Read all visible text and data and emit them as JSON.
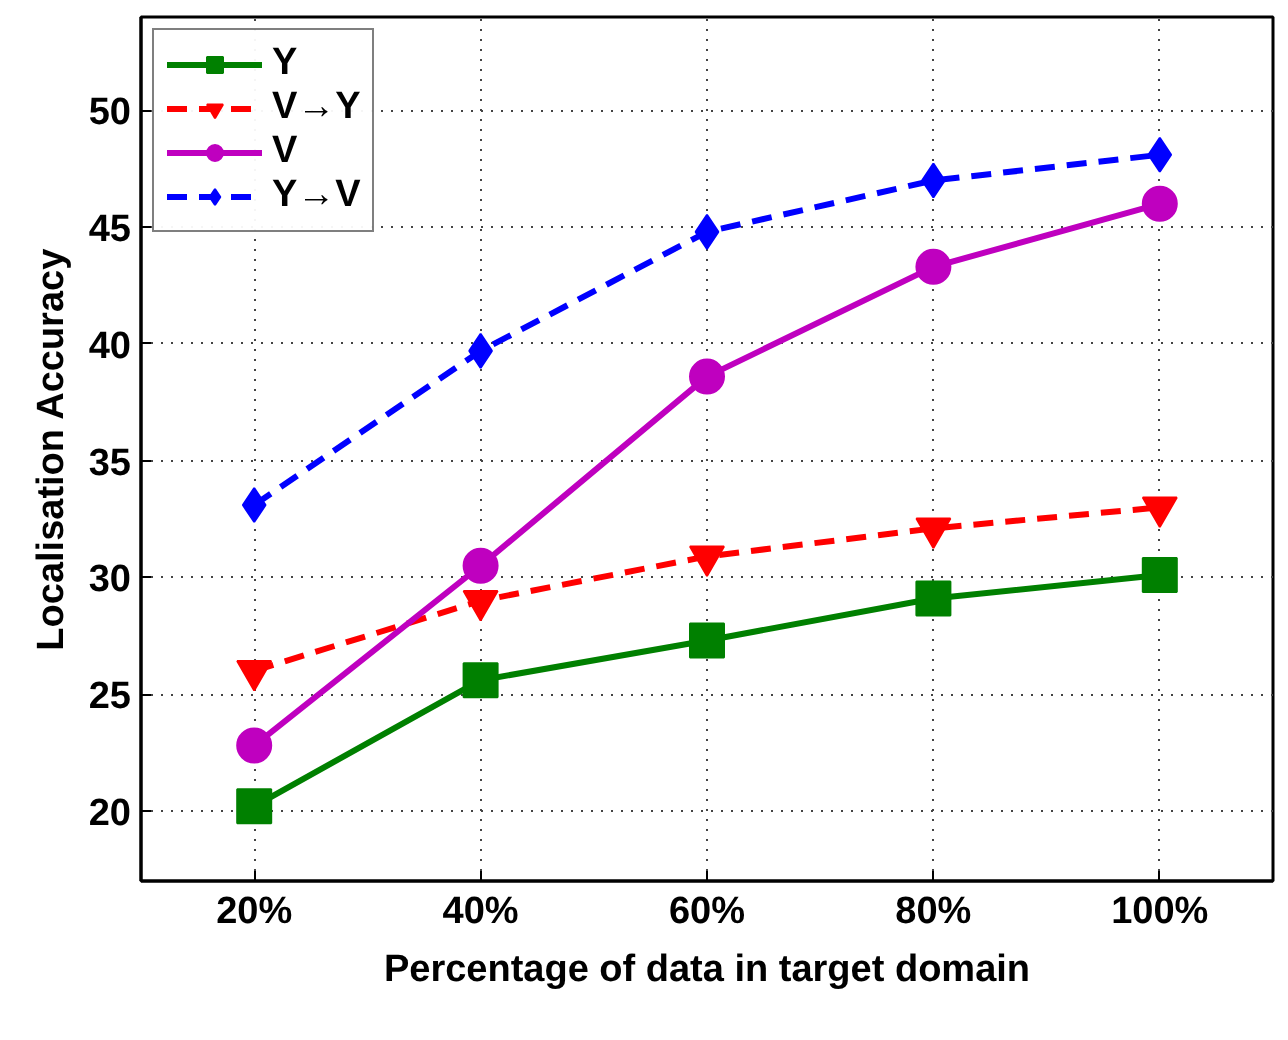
{
  "chart_data": {
    "type": "line",
    "xlabel": "Percentage of data in target domain",
    "ylabel": "Localisation Accuracy",
    "x": [
      20,
      40,
      60,
      80,
      100
    ],
    "xlim": [
      10,
      110
    ],
    "ylim": [
      17,
      54
    ],
    "xticks": [
      {
        "value": 20,
        "label": "20%"
      },
      {
        "value": 40,
        "label": "40%"
      },
      {
        "value": 60,
        "label": "60%"
      },
      {
        "value": 80,
        "label": "80%"
      },
      {
        "value": 100,
        "label": "100%"
      }
    ],
    "yticks": [
      20,
      25,
      30,
      35,
      40,
      45,
      50
    ],
    "grid": true,
    "legend": "top left",
    "series": [
      {
        "name": "Y",
        "color": "#008000",
        "marker": "square",
        "line_style": "solid",
        "values": [
          20.2,
          25.6,
          27.3,
          29.1,
          30.1
        ]
      },
      {
        "name": "V→Y",
        "color": "#ff0000",
        "marker": "triangle",
        "line_style": "dashed",
        "values": [
          26.0,
          29.0,
          30.9,
          32.1,
          33.0
        ]
      },
      {
        "name": "V",
        "color": "#bf00bf",
        "marker": "circle",
        "line_style": "solid",
        "values": [
          22.8,
          30.5,
          38.6,
          43.3,
          46.0
        ]
      },
      {
        "name": "Y→V",
        "color": "#0000ff",
        "marker": "diamond",
        "line_style": "dashed",
        "values": [
          33.1,
          39.7,
          44.8,
          47.0,
          48.1
        ]
      }
    ]
  }
}
